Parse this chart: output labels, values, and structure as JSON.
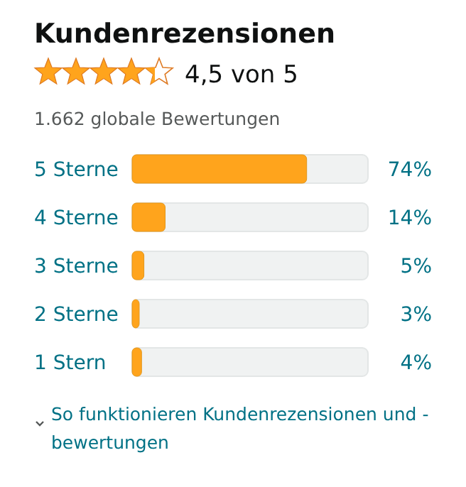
{
  "chart_data": {
    "type": "bar",
    "orientation": "horizontal",
    "title": "Kundenrezensionen",
    "subtitle": "4,5 von 5",
    "annotations": [
      "1.662 globale Bewertungen",
      "So funktionieren Kundenrezensionen und -bewertungen"
    ],
    "categories": [
      "5 Sterne",
      "4 Sterne",
      "3 Sterne",
      "2 Sterne",
      "1 Stern"
    ],
    "values": [
      74,
      14,
      5,
      3,
      4
    ],
    "value_labels": [
      "74%",
      "14%",
      "5%",
      "3%",
      "4%"
    ],
    "color": "#ffa41c",
    "xlim": [
      0,
      100
    ]
  }
}
